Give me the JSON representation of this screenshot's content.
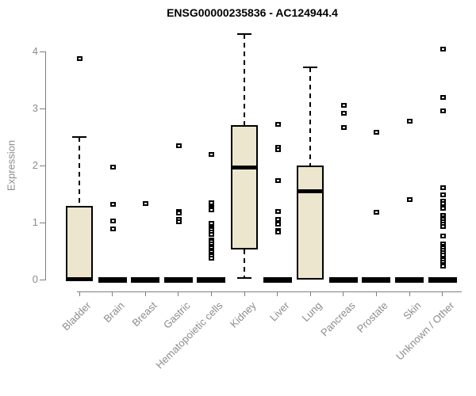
{
  "chart_data": {
    "type": "boxplot",
    "title": "ENSG00000235836 - AC124944.4",
    "ylabel": "Expression",
    "xlabel": "",
    "ylim": [
      0,
      4.35
    ],
    "yticks": [
      0,
      1,
      2,
      3,
      4
    ],
    "grid": false,
    "legend": "none",
    "box_fill_color": "#ECE6CF",
    "box_stroke_color": "#000000",
    "axis_color": "#7f7f7f",
    "label_color": "#8c8c8c",
    "categories": [
      "Bladder",
      "Brain",
      "Breast",
      "Gastric",
      "Hematopoietic cells",
      "Kidney",
      "Liver",
      "Lung",
      "Pancreas",
      "Prostate",
      "Skin",
      "Unknown / Other"
    ],
    "series": [
      {
        "name": "Bladder",
        "q1": 0,
        "median": 0.02,
        "q3": 1.29,
        "whisker_low": 0,
        "whisker_high": 2.5,
        "outliers": [
          3.87
        ]
      },
      {
        "name": "Brain",
        "q1": 0,
        "median": 0,
        "q3": 0,
        "whisker_low": 0,
        "whisker_high": 0,
        "outliers": [
          1.97,
          1.32,
          1.03,
          0.89
        ]
      },
      {
        "name": "Breast",
        "q1": 0,
        "median": 0,
        "q3": 0,
        "whisker_low": 0,
        "whisker_high": 0,
        "outliers": [
          1.33
        ]
      },
      {
        "name": "Gastric",
        "q1": 0,
        "median": 0,
        "q3": 0,
        "whisker_low": 0,
        "whisker_high": 0,
        "outliers": [
          2.35,
          1.19,
          1.16,
          1.05,
          1.02
        ]
      },
      {
        "name": "Hematopoietic cells",
        "q1": 0,
        "median": 0,
        "q3": 0,
        "whisker_low": 0,
        "whisker_high": 0,
        "outliers": [
          2.19,
          1.35,
          1.28,
          1.25,
          1.22,
          0.99,
          0.9,
          0.87,
          0.83,
          0.79,
          0.69,
          0.66,
          0.62,
          0.58,
          0.55,
          0.51,
          0.48,
          0.44,
          0.41,
          0.38
        ]
      },
      {
        "name": "Kidney",
        "q1": 0.53,
        "median": 1.97,
        "q3": 2.71,
        "whisker_low": 0.03,
        "whisker_high": 4.31,
        "outliers": []
      },
      {
        "name": "Liver",
        "q1": 0,
        "median": 0,
        "q3": 0,
        "whisker_low": 0,
        "whisker_high": 0,
        "outliers": [
          2.72,
          2.32,
          2.28,
          1.73,
          1.2,
          1.05,
          0.97,
          0.86,
          0.83
        ]
      },
      {
        "name": "Lung",
        "q1": 0,
        "median": 1.55,
        "q3": 2.0,
        "whisker_low": 0,
        "whisker_high": 3.72,
        "outliers": []
      },
      {
        "name": "Pancreas",
        "q1": 0,
        "median": 0,
        "q3": 0,
        "whisker_low": 0,
        "whisker_high": 0,
        "outliers": [
          3.06,
          2.92,
          2.67
        ]
      },
      {
        "name": "Prostate",
        "q1": 0,
        "median": 0,
        "q3": 0,
        "whisker_low": 0,
        "whisker_high": 0,
        "outliers": [
          2.58,
          1.18
        ]
      },
      {
        "name": "Skin",
        "q1": 0,
        "median": 0,
        "q3": 0,
        "whisker_low": 0,
        "whisker_high": 0,
        "outliers": [
          2.78,
          1.4
        ]
      },
      {
        "name": "Unknown / Other",
        "q1": 0,
        "median": 0,
        "q3": 0,
        "whisker_low": 0,
        "whisker_high": 0,
        "outliers": [
          4.04,
          3.19,
          2.96,
          1.61,
          1.49,
          1.37,
          1.34,
          1.25,
          1.13,
          1.09,
          1.05,
          1.01,
          0.97,
          0.93,
          0.76,
          0.63,
          0.59,
          0.55,
          0.51,
          0.47,
          0.43,
          0.35,
          0.31,
          0.27,
          0.23
        ]
      }
    ]
  }
}
